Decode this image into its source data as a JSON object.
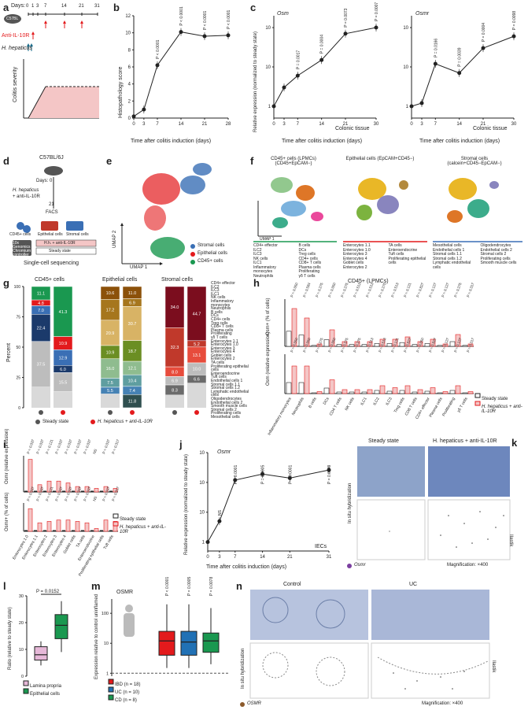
{
  "panels": {
    "a": {
      "label": "a",
      "days_label": "Days:",
      "days": [
        "0",
        "1",
        "3",
        "7",
        "14",
        "21",
        "31"
      ],
      "treatment": "Anti-IL-10R",
      "infection": "H. hepaticus",
      "severity_label": "Colitis severity",
      "mouse_label": "C57BL"
    },
    "b": {
      "label": "b",
      "ylabel": "Histopathology score",
      "xlabel": "Time after colitis induction (days)"
    },
    "c": {
      "label": "c",
      "ylabel": "Relative expression (normalized to steady state)",
      "xlabel": "Time after colitis induction (days)",
      "left_gene": "Osm",
      "right_gene": "Osmr",
      "tissue": "Colonic tissue"
    },
    "d": {
      "label": "d",
      "strain": "C57BL/6J",
      "day0": "Days: 0",
      "treat1": "H. hepaticus",
      "treat2": "+ anti-IL-10R",
      "day21": "21",
      "facs": "FACS",
      "cell1": "CD45+ cells",
      "cell2": "Epithelial cells",
      "cell3": "Stromal cells",
      "tech": "10x Genomics Chromium controller",
      "cond1": "H.h. + anti-IL-10R",
      "cond2": "Steady state",
      "seq": "Single-cell sequencing"
    },
    "e": {
      "label": "e",
      "umap1": "UMAP 1",
      "umap2": "UMAP 2",
      "legend": [
        "Stromal cells",
        "Epithelial cells",
        "CD45+ cells"
      ]
    },
    "f": {
      "label": "f",
      "titles": [
        "CD45+ cells (LPMCs) (CD45+EpCAM−)",
        "Epithelial cells (EpCAM+CD45−)",
        "Stromal cells (calcein+CD45−EpCAM−)"
      ],
      "umap1": "UMAP 1",
      "umap2": "UMAP 2",
      "legend_cd45": [
        "CD4+ effector",
        "ILC2",
        "ILC3",
        "NK cells",
        "ILC1",
        "Inflammatory monocytes",
        "Neutrophils",
        "B cells",
        "DCs",
        "Treg cells",
        "CD4+ cells",
        "CD8+ T cells",
        "Plasma cells",
        "Proliferating",
        "γδ T cells"
      ],
      "legend_epi": [
        "Enterocytes 1.1",
        "Enterocytes 1.0",
        "Enterocytes 3",
        "Enterocytes 4",
        "Goblet cells",
        "Enterocytes 2",
        "TA cells",
        "Enteroendocrine",
        "Tuft cells",
        "Proliferating epithelial cells"
      ],
      "legend_str": [
        "Mesothelial cells",
        "Endothelial cells 1",
        "Stromal cells 1.1",
        "Stromal cells 1.2",
        "Lymphatic endothelial cells",
        "Oligodendrocytes",
        "Endothelial cells 2",
        "Stromal cells 2",
        "Proliferating cells",
        "Smooth muscle cells"
      ]
    },
    "g": {
      "label": "g",
      "ylabel": "Percent",
      "groups": [
        "CD45+ cells",
        "Epithelial cells",
        "Stromal cells"
      ],
      "legend": [
        "Steady state",
        "H. hepaticus + anti-IL-10R"
      ],
      "cd45_ss": [
        "11.1",
        "4.8",
        "7.0",
        "22.4",
        "37.5"
      ],
      "cd45_hh": [
        "41.3",
        "10.9",
        "12.9",
        "6.0",
        "15.5"
      ],
      "epi_ss": [
        "10.6",
        "17.2",
        "20.9",
        "10.9",
        "16.0",
        "7.5",
        "5.5"
      ],
      "epi_hh": [
        "11.0",
        "6.9",
        "30.7",
        "18.7",
        "12.1",
        "10.4",
        "7.4",
        "11.8"
      ],
      "str_ss": [
        "34.0",
        "32.3",
        "8.0",
        "6.9",
        "8.3"
      ],
      "str_hh": [
        "44.7",
        "5.2",
        "13.1",
        "10.0",
        "6.6"
      ],
      "side_labels": [
        "CD45+ cells",
        "Epithelial cells",
        "Stromal cells"
      ],
      "side_legend": [
        "CD4+ effector",
        "ILC2",
        "ILC3",
        "ILC1",
        "NK cells",
        "Inflammatory monocytes",
        "Neutrophils",
        "B cells",
        "DCs",
        "CD4+ cells",
        "Treg cells",
        "CD8+ T cells",
        "Plasma cells",
        "Proliferating",
        "γδ T cells",
        "Enterocytes 1.1",
        "Enterocytes 1.0",
        "Enterocytes 3",
        "Enterocytes 4",
        "Goblet cells",
        "Enterocytes 2",
        "TA cells",
        "Proliferating epithelial cells",
        "Enteroendocrine",
        "Tuft cells",
        "Endothelial cells 1",
        "Stromal cells 1.1",
        "Stromal cells 1.2",
        "Lymphatic endothelial cells",
        "Oligodendrocytes",
        "Endothelial cells 2",
        "Smooth muscle cells",
        "Stromal cells 2",
        "Proliferating cells",
        "Mesothelial cells"
      ]
    },
    "h": {
      "label": "h",
      "title": "CD45+ (LPMCs)",
      "ylabel_top": "Osm+ (% of cells)",
      "ylabel_bottom": "Osm (relative expression)",
      "legend": [
        "Steady state",
        "H. hepaticus + anti-IL-10R"
      ],
      "categories": [
        "Inflammatory monocytes",
        "Neutrophils",
        "B cells",
        "DCs",
        "CD4 T cells",
        "NK cells",
        "ILC1",
        "ILC2",
        "ILC3",
        "Treg cells",
        "CD8 T cells",
        "CD4+ effector",
        "Plasma cells",
        "Proliferating",
        "γδ T cells"
      ],
      "p_top": [
        "P = 0.050",
        "P = 0.584",
        "P = 0.275",
        "P = 0.050",
        "P = 0.275",
        "P = 0.513",
        "P = 0.513",
        "P = 0.275",
        "P = 0.513",
        "P = 0.121",
        "P = 0.827",
        "P = 0.127",
        "P = 0.127",
        "P = 0.275",
        "P = 0.317"
      ],
      "p_bottom": [
        "P = 0.050",
        "P = 0.050",
        "P = 0.275",
        "P = 0.050",
        "P = 0.275",
        "P = 0.275",
        "P = 0.513",
        "P = 0.513",
        "P = 0.121",
        "P = 0.827",
        "P = 0.050",
        "P = 0.827",
        "P = 0.127",
        "P = 0.127",
        "P = 0.317"
      ]
    },
    "i": {
      "label": "i",
      "ylabel_top": "Osmr (relative expression)",
      "ylabel_bottom": "Osmr+ (% of cells)",
      "legend": [
        "Steady state",
        "H. hepaticus + anti-IL-10R"
      ],
      "categories": [
        "Enterocytes 1.0",
        "Enterocytes 1.1",
        "Enterocytes 2",
        "Enterocytes 3",
        "Enterocytes 4",
        "Goblet cells",
        "TA cells",
        "Enteroendocrine",
        "Proliferating epithelial cells",
        "Tuft cells"
      ],
      "p_top": [
        "P = 0.037",
        "P = 0.037",
        "P = 0.121",
        "P = 0.037",
        "P = 0.037",
        "P = 0.037",
        "P = 0.037",
        "NS",
        "P = 0.037",
        "P = 0.317"
      ],
      "p_bottom": [
        "P = 0.037",
        "P = 0.037",
        "P = 0.121",
        "P = 0.037",
        "P = 0.037",
        "P = 0.037",
        "P = 0.037",
        "NS",
        "P = 0.037",
        "P = 0.317"
      ]
    },
    "j": {
      "label": "j",
      "gene": "Osmr",
      "ylabel": "Relative expression (normalized to steady state)",
      "xlabel": "Time after colitis induction (days)",
      "tissue": "IECs",
      "annotations": [
        "NS",
        "P < 0.0001",
        "P = 0.0005",
        "P < 0.0001",
        "P = 0.0049"
      ]
    },
    "k": {
      "label": "k",
      "col1": "Steady state",
      "col2": "H. hepaticus + anti-IL-10R",
      "row": "In situ hybridization",
      "ilastik": "Ilastik",
      "marker": "Osmr",
      "mag": "Magnification: ×400"
    },
    "l": {
      "label": "l",
      "ylabel": "Ratio (relative to steady state)",
      "p": "P = 0.0152",
      "legend": [
        "Lamina propria",
        "Epithelial cells"
      ]
    },
    "m": {
      "label": "m",
      "title": "OSMR",
      "ylabel": "Expression relative to control uninflamed",
      "pvals": [
        "P < 0.0001",
        "P = 0.0005",
        "P = 0.0078"
      ],
      "legend": [
        "IBD (n = 18)",
        "UC (n = 10)",
        "CD (n = 8)"
      ]
    },
    "n": {
      "label": "n",
      "col1": "Control",
      "col2": "UC",
      "row": "In situ hybridization",
      "ilastik": "Ilastik",
      "marker": "OSMR",
      "mag": "Magnification: ×400"
    }
  },
  "chart_data": [
    {
      "type": "line",
      "panel": "b",
      "x": [
        0,
        3,
        7,
        14,
        21,
        28
      ],
      "y": [
        0.2,
        1.0,
        6.2,
        10.1,
        9.6,
        9.7
      ],
      "title": "",
      "xlabel": "Time after colitis induction (days)",
      "ylabel": "Histopathology score",
      "ylim": [
        0,
        12
      ],
      "annotations": [
        "P < 0.0001",
        "P < 0.0001",
        "P < 0.0001",
        "P < 0.0001"
      ]
    },
    {
      "type": "line",
      "panel": "c-left",
      "gene": "Osm",
      "x": [
        0,
        3,
        7,
        14,
        21,
        30
      ],
      "y": [
        1,
        3,
        6,
        15,
        70,
        100
      ],
      "log_y": true,
      "ylim": [
        0.5,
        200
      ],
      "annotations": [
        "P = 0.0017",
        "P = 0.0004",
        "P = 0.0073",
        "P = 0.0007"
      ]
    },
    {
      "type": "line",
      "panel": "c-right",
      "gene": "Osmr",
      "x": [
        0,
        3,
        7,
        14,
        21,
        30
      ],
      "y": [
        1,
        1.2,
        12,
        7,
        30,
        60
      ],
      "log_y": true,
      "ylim": [
        0.5,
        200
      ],
      "annotations": [
        "P = 0.0166",
        "P = 0.0039",
        "P = 0.0004",
        "P = 0.0098"
      ]
    },
    {
      "type": "line",
      "panel": "j",
      "gene": "Osmr",
      "x": [
        0,
        3,
        7,
        14,
        21,
        31
      ],
      "y": [
        1,
        5,
        120,
        190,
        140,
        260
      ],
      "log_y": true,
      "ylim": [
        0.5,
        1000
      ]
    },
    {
      "type": "box",
      "panel": "l",
      "categories": [
        "Lamina propria",
        "Epithelial cells"
      ],
      "medians": [
        8,
        19
      ],
      "q1": [
        6,
        14
      ],
      "q3": [
        11,
        23
      ],
      "min": [
        4,
        9
      ],
      "max": [
        13,
        28
      ]
    },
    {
      "type": "box",
      "panel": "m",
      "categories": [
        "IBD (n = 18)",
        "UC (n = 10)",
        "CD (n = 8)"
      ],
      "medians": [
        12,
        11,
        12
      ],
      "q1": [
        4,
        4,
        5
      ],
      "q3": [
        25,
        25,
        22
      ],
      "min": [
        1.5,
        1.5,
        2
      ],
      "max": [
        200,
        200,
        150
      ],
      "log_y": true
    }
  ],
  "colors": {
    "red": "#e31a1c",
    "green": "#1a9850",
    "blue": "#3a6fb5",
    "pink_fill": "#f4c6c6",
    "gray": "#888888",
    "dark": "#222222"
  }
}
